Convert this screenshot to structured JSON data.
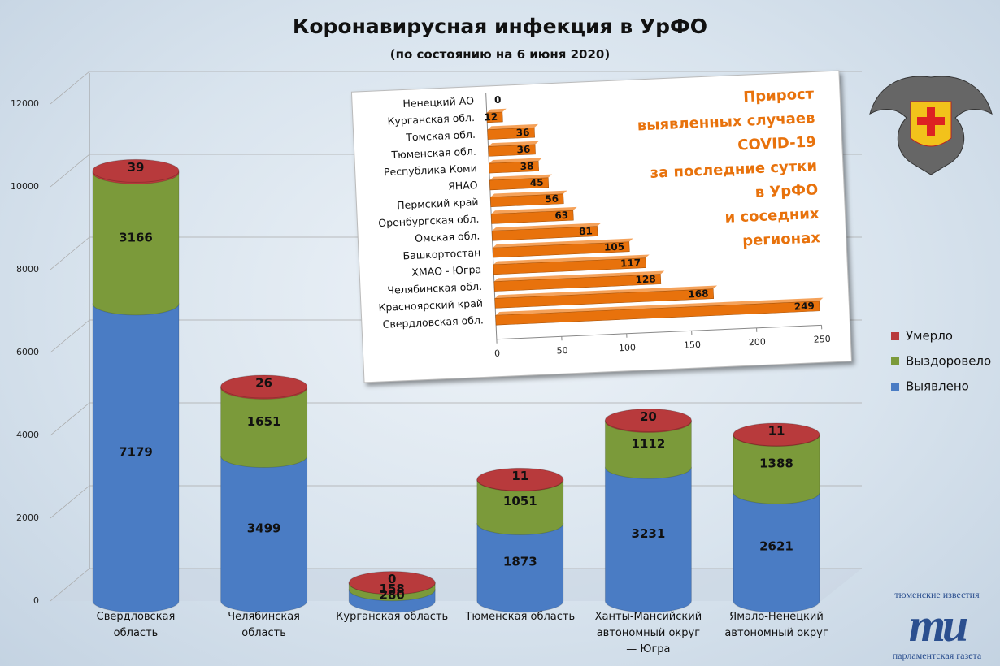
{
  "chart_data": [
    {
      "type": "stacked-bar",
      "title": "Коронавирусная инфекция в УрФО",
      "subtitle": "(по состоянию на 6 июня 2020)",
      "categories": [
        "Свердловская область",
        "Челябинская область",
        "Курганская область",
        "Тюменская область",
        "Ханты-Мансийский автономный округ — Югра",
        "Ямало-Ненецкий автономный округ"
      ],
      "series": [
        {
          "name": "Выявлено",
          "color": "#4a7cc4",
          "values": [
            7179,
            3499,
            280,
            1873,
            3231,
            2621
          ]
        },
        {
          "name": "Выздоровело",
          "color": "#7b9a3a",
          "values": [
            3166,
            1651,
            158,
            1051,
            1112,
            1388
          ]
        },
        {
          "name": "Умерло",
          "color": "#b83a3c",
          "values": [
            39,
            26,
            0,
            11,
            20,
            11
          ]
        }
      ],
      "ylim": [
        0,
        12000
      ],
      "yticks": [
        0,
        2000,
        4000,
        6000,
        8000,
        10000,
        12000
      ],
      "grid": true,
      "legend": "right"
    },
    {
      "type": "hbar",
      "title": [
        "Прирост",
        "выявленных случаев",
        "COVID-19",
        "за последние сутки",
        "в УрФО",
        "и соседних",
        "регионах"
      ],
      "categories": [
        "Ненецкий АО",
        "Курганская обл.",
        "Томская обл.",
        "Тюменская обл.",
        "Республика Коми",
        "ЯНАО",
        "Пермский край",
        "Оренбургская обл.",
        "Омская обл.",
        "Башкортостан",
        "ХМАО - Югра",
        "Челябинская обл.",
        "Красноярский край",
        "Свердловская обл."
      ],
      "values": [
        0,
        12,
        36,
        36,
        38,
        45,
        56,
        63,
        81,
        105,
        117,
        128,
        168,
        249
      ],
      "color": "#e8720c",
      "xlim": [
        0,
        250
      ],
      "xticks": [
        0,
        50,
        100,
        150,
        200,
        250
      ]
    }
  ],
  "logo": {
    "top": "тюменские известия",
    "mark": "ти",
    "bottom": "парламентская газета"
  }
}
